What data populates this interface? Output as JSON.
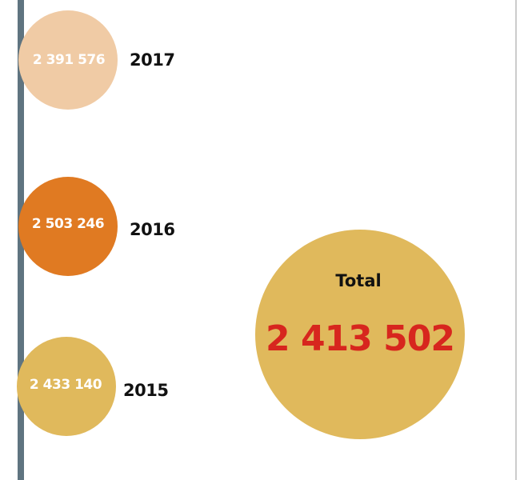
{
  "items": [
    {
      "value": "2 391 576",
      "year": "2017"
    },
    {
      "value": "2 503 246",
      "year": "2016"
    },
    {
      "value": "2 433 140",
      "year": "2015"
    }
  ],
  "total": {
    "label": "Total",
    "value": "2 413 502"
  }
}
